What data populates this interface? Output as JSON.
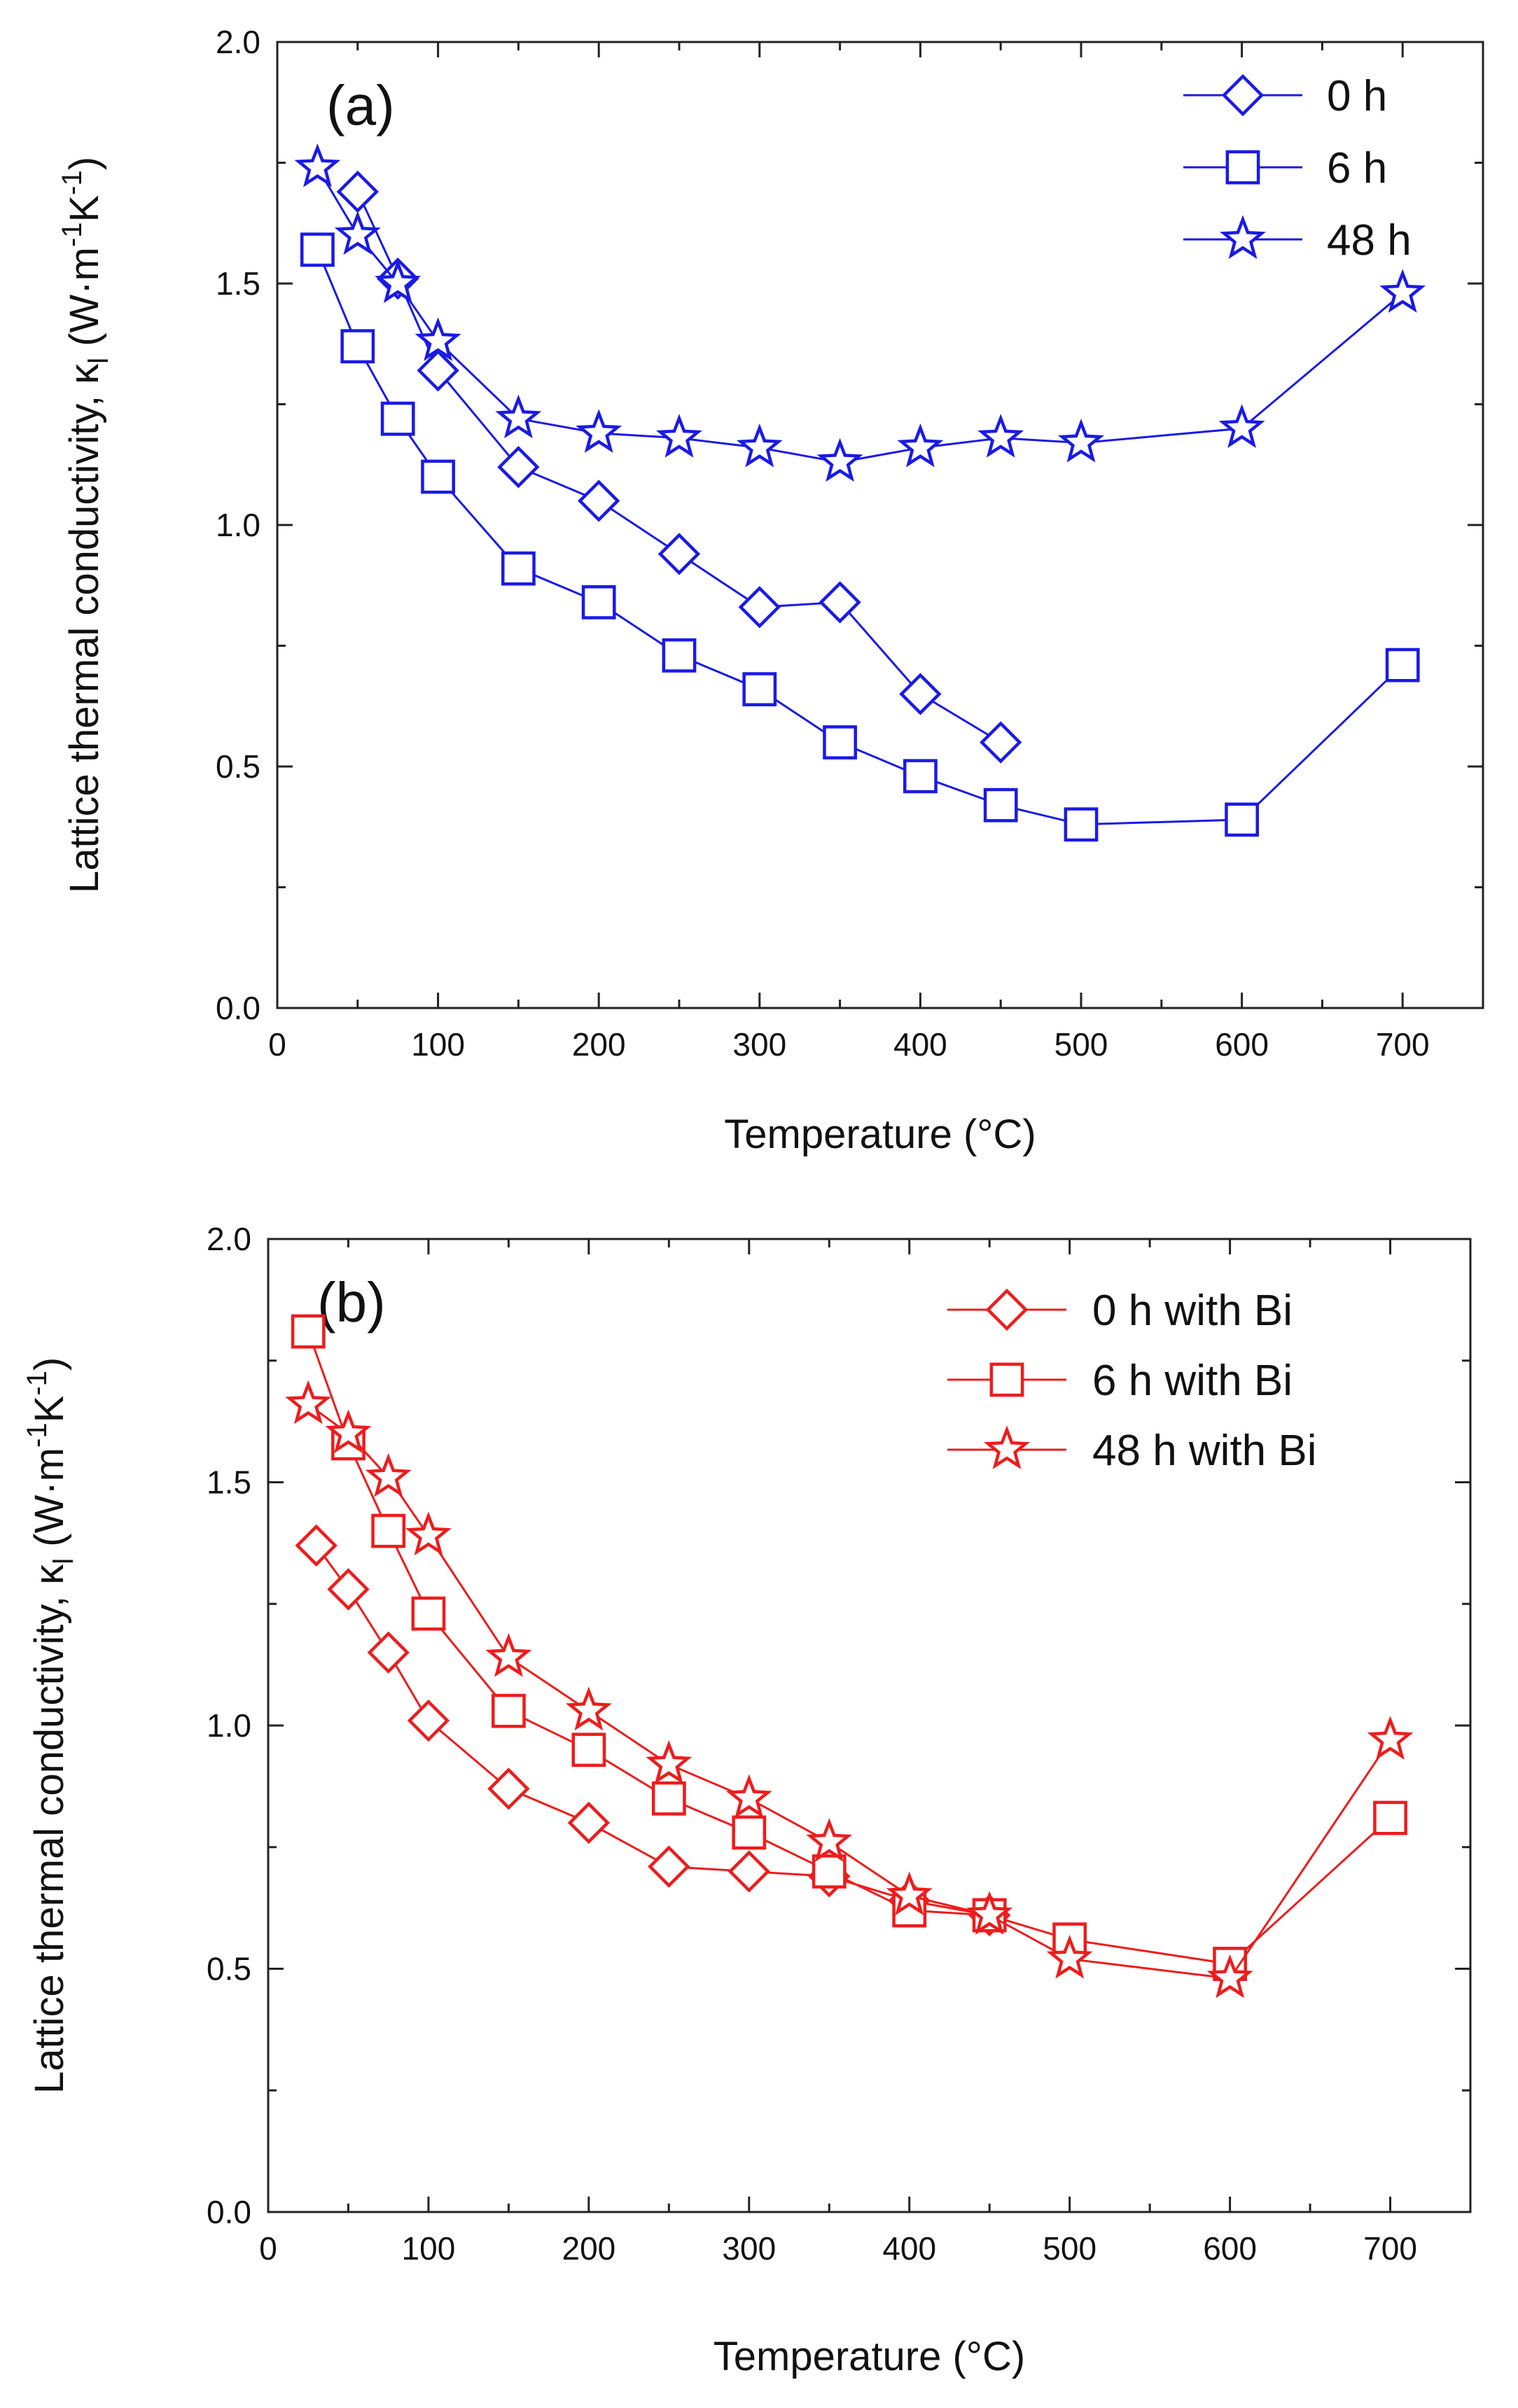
{
  "chart_data": [
    {
      "type": "line",
      "panel_label": "(a)",
      "color": "#1a1ae6",
      "xlabel": "Temperature (°C)",
      "ylabel_main": "Lattice thermal conductivity, κ",
      "ylabel_sub": "l",
      "ylabel_unit": "(W·m",
      "ylabel_exp1": "-1",
      "ylabel_unit2": "K",
      "ylabel_exp2": "-1",
      "ylabel_close": ")",
      "xlim": [
        0,
        750
      ],
      "ylim": [
        0,
        2.0
      ],
      "x_ticks": [
        0,
        100,
        200,
        300,
        400,
        500,
        600,
        700
      ],
      "y_ticks": [
        0.0,
        0.5,
        1.0,
        1.5,
        2.0
      ],
      "x_tick_labels": [
        "0",
        "100",
        "200",
        "300",
        "400",
        "500",
        "600",
        "700"
      ],
      "y_tick_labels": [
        "0.0",
        "0.5",
        "1.0",
        "1.5",
        "2.0"
      ],
      "legend_position": "top-right",
      "series": [
        {
          "name": "0 h",
          "marker": "diamond",
          "x": [
            50,
            75,
            100,
            150,
            200,
            250,
            300,
            350,
            400,
            450
          ],
          "y": [
            1.69,
            1.51,
            1.32,
            1.12,
            1.05,
            0.94,
            0.83,
            0.84,
            0.65,
            0.55
          ]
        },
        {
          "name": "6 h",
          "marker": "square",
          "x": [
            25,
            50,
            75,
            100,
            150,
            200,
            250,
            300,
            350,
            400,
            450,
            500,
            600,
            700
          ],
          "y": [
            1.57,
            1.37,
            1.22,
            1.1,
            0.91,
            0.84,
            0.73,
            0.66,
            0.55,
            0.48,
            0.42,
            0.38,
            0.39,
            0.71
          ]
        },
        {
          "name": "48 h",
          "marker": "star",
          "x": [
            25,
            50,
            75,
            100,
            150,
            200,
            250,
            300,
            350,
            400,
            450,
            500,
            600,
            700
          ],
          "y": [
            1.74,
            1.6,
            1.5,
            1.38,
            1.22,
            1.19,
            1.18,
            1.16,
            1.13,
            1.16,
            1.18,
            1.17,
            1.2,
            1.48
          ]
        }
      ]
    },
    {
      "type": "line",
      "panel_label": "(b)",
      "color": "#ee1c1c",
      "xlabel": "Temperature (°C)",
      "ylabel_main": "Lattice thermal conductivity, κ",
      "ylabel_sub": "l",
      "ylabel_unit": "(W·m",
      "ylabel_exp1": "-1",
      "ylabel_unit2": "K",
      "ylabel_exp2": "-1",
      "ylabel_close": ")",
      "xlim": [
        0,
        750
      ],
      "ylim": [
        0,
        2.0
      ],
      "x_ticks": [
        0,
        100,
        200,
        300,
        400,
        500,
        600,
        700
      ],
      "y_ticks": [
        0.0,
        0.5,
        1.0,
        1.5,
        2.0
      ],
      "x_tick_labels": [
        "0",
        "100",
        "200",
        "300",
        "400",
        "500",
        "600",
        "700"
      ],
      "y_tick_labels": [
        "0.0",
        "0.5",
        "1.0",
        "1.5",
        "2.0"
      ],
      "legend_position": "top-right",
      "series": [
        {
          "name": "0 h with Bi",
          "marker": "diamond",
          "x": [
            30,
            50,
            75,
            100,
            150,
            200,
            250,
            300,
            350,
            400,
            450
          ],
          "y": [
            1.37,
            1.28,
            1.15,
            1.01,
            0.87,
            0.8,
            0.71,
            0.7,
            0.69,
            0.64,
            0.61
          ]
        },
        {
          "name": "6 h with Bi",
          "marker": "square",
          "x": [
            25,
            50,
            75,
            100,
            150,
            200,
            250,
            300,
            350,
            400,
            450,
            500,
            600,
            700
          ],
          "y": [
            1.81,
            1.58,
            1.4,
            1.23,
            1.03,
            0.95,
            0.85,
            0.78,
            0.7,
            0.62,
            0.61,
            0.56,
            0.51,
            0.81
          ]
        },
        {
          "name": "48 h with Bi",
          "marker": "star",
          "x": [
            25,
            50,
            75,
            100,
            150,
            200,
            250,
            300,
            350,
            400,
            450,
            500,
            600,
            700
          ],
          "y": [
            1.66,
            1.6,
            1.51,
            1.39,
            1.14,
            1.03,
            0.92,
            0.85,
            0.76,
            0.65,
            0.61,
            0.52,
            0.48,
            0.97
          ]
        }
      ]
    }
  ]
}
